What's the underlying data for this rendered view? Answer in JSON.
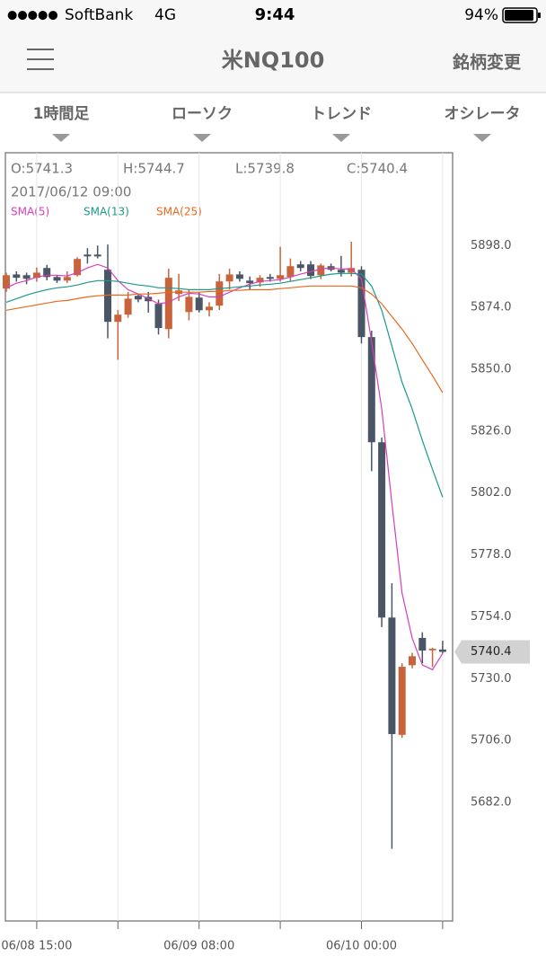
{
  "status_bar": {
    "carrier": "SoftBank",
    "network": "4G",
    "time": "9:44",
    "battery": "94%"
  },
  "nav": {
    "title": "米NQ100",
    "action": "銘柄変更"
  },
  "tabs": [
    "1時間足",
    "ローソク",
    "トレンド",
    "オシレータ"
  ],
  "chart_data": {
    "type": "candlestick",
    "ohlc_labels": [
      "O:5741.3",
      "H:5744.7",
      "L:5739.8",
      "C:5740.4"
    ],
    "datetime": "2017/06/12 09:00",
    "up_color": "#c8643c",
    "down_color": "#4a5566",
    "categories": [
      null,
      null,
      null,
      "06/08 15:00",
      null,
      null,
      null,
      null,
      null,
      null,
      null,
      null,
      null,
      null,
      null,
      null,
      null,
      null,
      null,
      "06/09 08:00",
      null,
      null,
      null,
      null,
      null,
      null,
      null,
      null,
      null,
      null,
      null,
      null,
      null,
      null,
      null,
      "06/10 00:00",
      null,
      null,
      null,
      null,
      null,
      null,
      null,
      null
    ],
    "xticks": [
      3,
      11,
      19,
      27,
      35,
      43
    ],
    "open": [
      5881.3,
      5886.8,
      5886.5,
      5885.5,
      5889.3,
      5885.8,
      5884.4,
      5886.5,
      5894.5,
      5894.5,
      5888.6,
      5868.4,
      5871.2,
      5878.5,
      5878.1,
      5875.4,
      5865.6,
      5879.2,
      5872.2,
      5877.8,
      5872.9,
      5874.7,
      5884.1,
      5886.8,
      5884.4,
      5883.7,
      5885.8,
      5885.1,
      5885.8,
      5890.7,
      5890.7,
      5886.5,
      5890.0,
      5888.6,
      5887.5,
      5888.6,
      5862.5,
      5821.7,
      5753.7,
      5708.2,
      5735.2,
      5745.8,
      5741.0,
      5741.3
    ],
    "high": [
      5887.5,
      5888.0,
      5887.5,
      5889.5,
      5890.5,
      5886.5,
      5888.0,
      5893.5,
      5897.0,
      5898.0,
      5898.4,
      5873.0,
      5880.0,
      5879.0,
      5880.0,
      5877.0,
      5889.0,
      5887.0,
      5881.0,
      5880.0,
      5876.0,
      5887.0,
      5889.0,
      5888.0,
      5886.0,
      5886.5,
      5887.0,
      5897.5,
      5893.0,
      5892.0,
      5892.0,
      5891.0,
      5891.0,
      5894.0,
      5899.5,
      5890.0,
      5865.0,
      5823.5,
      5767.0,
      5736.0,
      5740.0,
      5748.0,
      5742.0,
      5744.7
    ],
    "low": [
      5880.0,
      5884.0,
      5883.0,
      5884.0,
      5884.5,
      5883.5,
      5883.5,
      5886.0,
      5891.0,
      5893.0,
      5862.0,
      5853.7,
      5870.0,
      5876.0,
      5872.0,
      5863.5,
      5862.0,
      5876.5,
      5869.0,
      5872.0,
      5870.5,
      5873.0,
      5881.0,
      5884.0,
      5881.0,
      5882.0,
      5884.0,
      5884.0,
      5884.0,
      5888.0,
      5885.0,
      5885.0,
      5888.0,
      5886.0,
      5886.0,
      5860.0,
      5810.5,
      5750.0,
      5664.0,
      5707.0,
      5734.0,
      5736.0,
      5734.5,
      5739.8
    ],
    "close": [
      5886.5,
      5885.5,
      5885.1,
      5887.5,
      5885.8,
      5884.4,
      5885.8,
      5892.8,
      5893.8,
      5893.8,
      5868.4,
      5871.2,
      5877.4,
      5877.1,
      5876.4,
      5866.0,
      5885.5,
      5880.6,
      5878.1,
      5872.9,
      5874.3,
      5884.1,
      5886.8,
      5885.1,
      5883.4,
      5885.5,
      5885.1,
      5886.5,
      5890.0,
      5889.3,
      5886.2,
      5890.3,
      5888.6,
      5887.5,
      5889.3,
      5862.5,
      5821.7,
      5753.7,
      5708.5,
      5734.6,
      5738.7,
      5740.9,
      5741.6,
      5740.4
    ],
    "series": [
      {
        "name": "SMA(5)",
        "color": "#d63fb8",
        "values": [
          5881.6,
          5883.4,
          5884.4,
          5885.8,
          5886.5,
          5886.5,
          5886.2,
          5887.5,
          5889.3,
          5890.7,
          5889.3,
          5884.4,
          5880.9,
          5879.2,
          5877.4,
          5875.4,
          5876.0,
          5878.1,
          5879.5,
          5879.2,
          5878.1,
          5878.1,
          5879.9,
          5881.6,
          5883.0,
          5884.1,
          5884.4,
          5884.8,
          5885.8,
          5886.9,
          5887.9,
          5888.9,
          5889.3,
          5888.9,
          5888.9,
          5885.1,
          5860.7,
          5834.6,
          5798.0,
          5763.2,
          5745.7,
          5735.3,
          5733.5,
          5739.8
        ]
      },
      {
        "name": "SMA(13)",
        "color": "#1a9a8a",
        "values": [
          5876.0,
          5877.4,
          5878.8,
          5879.9,
          5880.9,
          5881.6,
          5882.0,
          5882.7,
          5883.7,
          5884.4,
          5884.4,
          5884.1,
          5883.4,
          5882.7,
          5882.3,
          5881.6,
          5881.6,
          5881.3,
          5880.9,
          5880.9,
          5880.9,
          5881.3,
          5881.6,
          5882.0,
          5882.3,
          5882.7,
          5883.0,
          5883.4,
          5884.1,
          5884.8,
          5885.5,
          5886.2,
          5886.9,
          5887.2,
          5887.2,
          5886.9,
          5882.3,
          5872.9,
          5859.0,
          5845.0,
          5834.6,
          5822.4,
          5811.2,
          5800.4
        ]
      },
      {
        "name": "SMA(25)",
        "color": "#e8681e",
        "values": [
          5872.9,
          5873.6,
          5874.3,
          5875.0,
          5875.7,
          5876.4,
          5876.7,
          5877.4,
          5878.1,
          5878.5,
          5878.8,
          5878.8,
          5878.8,
          5879.2,
          5879.2,
          5879.5,
          5879.9,
          5879.9,
          5879.9,
          5879.9,
          5880.2,
          5880.2,
          5880.6,
          5880.6,
          5880.9,
          5880.9,
          5880.9,
          5881.3,
          5881.6,
          5882.0,
          5882.3,
          5882.3,
          5882.3,
          5882.3,
          5882.3,
          5881.6,
          5879.2,
          5875.4,
          5870.5,
          5865.6,
          5860.0,
          5853.7,
          5847.5,
          5840.9
        ]
      }
    ],
    "ylim": [
      5636,
      5934
    ],
    "yticks": [
      {
        "value": 5898,
        "label": "5898.0"
      },
      {
        "value": 5874,
        "label": "5874.0"
      },
      {
        "value": 5850,
        "label": "5850.0"
      },
      {
        "value": 5826,
        "label": "5826.0"
      },
      {
        "value": 5802,
        "label": "5802.0"
      },
      {
        "value": 5778,
        "label": "5778.0"
      },
      {
        "value": 5754,
        "label": "5754.0"
      },
      {
        "value": 5730,
        "label": "5730.0"
      },
      {
        "value": 5706,
        "label": "5706.0"
      },
      {
        "value": 5682,
        "label": "5682.0"
      }
    ],
    "last_price": 5740.4
  }
}
